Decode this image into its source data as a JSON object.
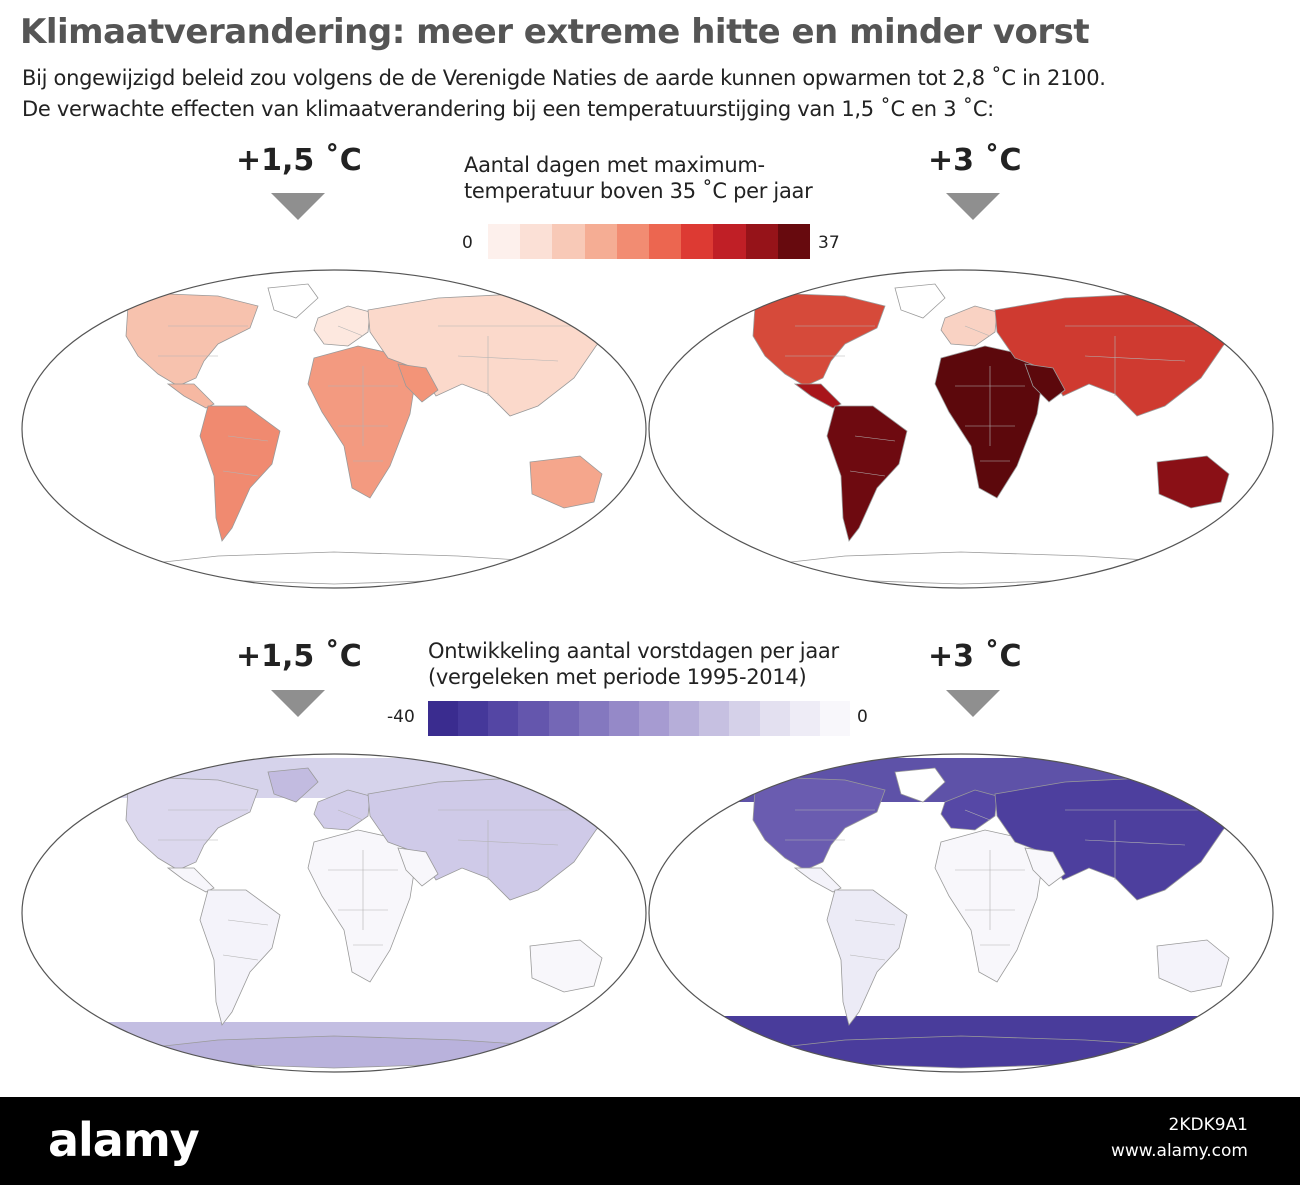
{
  "title": "Klimaatverandering: meer extreme hitte en minder vorst",
  "subtitle_lines": [
    "Bij ongewijzigd beleid zou volgens de de Verenigde Naties de aarde kunnen opwarmen tot 2,8 ˚C in 2100.",
    "De verwachte effecten van klimaatverandering bij een temperatuurstijging van 1,5 ˚C en 3 ˚C:"
  ],
  "heat": {
    "legend_title_lines": [
      "Aantal dagen met maximum-",
      "temperatuur boven 35 ˚C per jaar"
    ],
    "scale_min": "0",
    "scale_max": "37",
    "scale_colors": [
      "#fdf0ec",
      "#fbe0d6",
      "#f8c9b7",
      "#f5ad94",
      "#f28c72",
      "#ec6650",
      "#dd3a33",
      "#c01f26",
      "#961319",
      "#670a0e"
    ],
    "panels": [
      {
        "scenario": "+1,5 ˚C",
        "intensity": "moderate"
      },
      {
        "scenario": "+3 ˚C",
        "intensity": "extreme"
      }
    ]
  },
  "frost": {
    "legend_title_lines": [
      "Ontwikkeling aantal vorstdagen per jaar",
      "(vergeleken met periode 1995-2014)"
    ],
    "scale_min": "-40",
    "scale_max": "0",
    "scale_colors": [
      "#3a2c8f",
      "#45389a",
      "#5446a4",
      "#6456ad",
      "#7467b6",
      "#8478bf",
      "#9589c8",
      "#a69bd1",
      "#b6aed9",
      "#c6c0e1",
      "#d5d1e9",
      "#e3e0f0",
      "#eeecf6",
      "#f8f7fb"
    ],
    "panels": [
      {
        "scenario": "+1,5 ˚C",
        "intensity": "moderate"
      },
      {
        "scenario": "+3 ˚C",
        "intensity": "strong"
      }
    ]
  },
  "footer": {
    "brand": "alamy",
    "image_id": "2KDK9A1",
    "site": "www.alamy.com"
  }
}
